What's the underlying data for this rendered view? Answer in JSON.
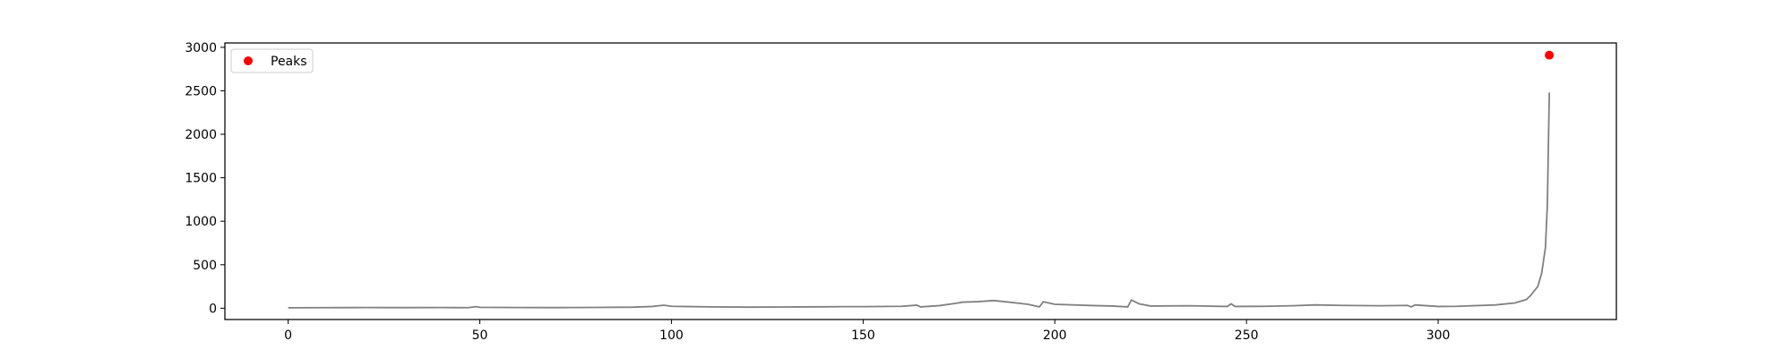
{
  "chart_data": {
    "type": "line",
    "title": "",
    "xlabel": "",
    "ylabel": "",
    "xlim": [
      -16.5,
      346.5
    ],
    "ylim": [
      -130,
      3050
    ],
    "x_ticks": [
      0,
      50,
      100,
      150,
      200,
      250,
      300
    ],
    "y_ticks": [
      0,
      500,
      1000,
      1500,
      2000,
      2500,
      3000
    ],
    "grid": false,
    "legend": {
      "position": "top-left",
      "entries": [
        "Peaks"
      ]
    },
    "series": [
      {
        "role": "signal",
        "color": "#808080",
        "points": [
          [
            0,
            5
          ],
          [
            10,
            6
          ],
          [
            20,
            8
          ],
          [
            30,
            7
          ],
          [
            40,
            8
          ],
          [
            47,
            6
          ],
          [
            49,
            18
          ],
          [
            50,
            10
          ],
          [
            60,
            8
          ],
          [
            70,
            7
          ],
          [
            80,
            9
          ],
          [
            90,
            12
          ],
          [
            95,
            20
          ],
          [
            98,
            35
          ],
          [
            100,
            22
          ],
          [
            110,
            15
          ],
          [
            120,
            12
          ],
          [
            130,
            14
          ],
          [
            140,
            16
          ],
          [
            145,
            18
          ],
          [
            150,
            18
          ],
          [
            160,
            22
          ],
          [
            164,
            35
          ],
          [
            165,
            15
          ],
          [
            170,
            30
          ],
          [
            174,
            55
          ],
          [
            176,
            70
          ],
          [
            180,
            75
          ],
          [
            184,
            88
          ],
          [
            188,
            70
          ],
          [
            193,
            45
          ],
          [
            196,
            15
          ],
          [
            197,
            75
          ],
          [
            200,
            45
          ],
          [
            210,
            30
          ],
          [
            215,
            25
          ],
          [
            219,
            15
          ],
          [
            220,
            95
          ],
          [
            222,
            50
          ],
          [
            225,
            25
          ],
          [
            235,
            28
          ],
          [
            245,
            20
          ],
          [
            246,
            50
          ],
          [
            247,
            20
          ],
          [
            255,
            22
          ],
          [
            262,
            28
          ],
          [
            268,
            38
          ],
          [
            275,
            32
          ],
          [
            285,
            28
          ],
          [
            292,
            32
          ],
          [
            293,
            15
          ],
          [
            294,
            38
          ],
          [
            300,
            20
          ],
          [
            305,
            22
          ],
          [
            315,
            38
          ],
          [
            320,
            60
          ],
          [
            323,
            100
          ],
          [
            324,
            140
          ],
          [
            326,
            250
          ],
          [
            327,
            400
          ],
          [
            328,
            700
          ],
          [
            328.5,
            1200
          ],
          [
            329,
            2480
          ]
        ]
      },
      {
        "name": "Peaks",
        "role": "peaks",
        "color": "#ff0000",
        "points": [
          [
            329,
            2910
          ]
        ]
      }
    ]
  }
}
